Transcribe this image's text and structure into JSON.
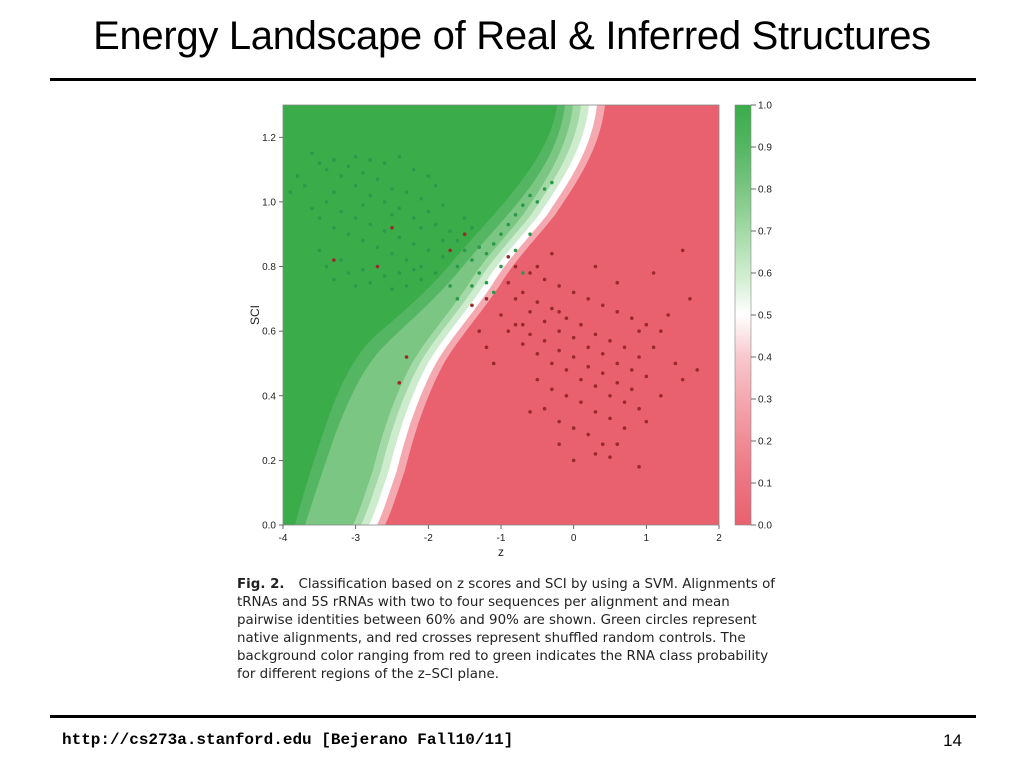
{
  "slide": {
    "title": "Energy Landscape of Real & Inferred Structures",
    "footer": "http://cs273a.stanford.edu  [Bejerano Fall10/11]",
    "page_number": "14"
  },
  "figure": {
    "caption_label": "Fig. 2.",
    "caption_text": "Classification based on z scores and SCI by using a SVM. Alignments of tRNAs and 5S rRNAs with two to four sequences per alignment and mean pairwise identities between 60% and 90% are shown. Green circles represent native alignments, and red crosses represent shuffled random controls. The background color ranging from red to green indicates the RNA class probability for different regions of the z–SCI plane."
  },
  "chart_data": {
    "type": "scatter",
    "xlabel": "z",
    "ylabel": "SCI",
    "xlim": [
      -4,
      2
    ],
    "ylim": [
      0,
      1.3
    ],
    "x_ticks": [
      "-4",
      "-3",
      "-2",
      "-1",
      "0",
      "1",
      "2"
    ],
    "y_ticks": [
      "0.0",
      "0.2",
      "0.4",
      "0.6",
      "0.8",
      "1.0",
      "1.2"
    ],
    "colorbar": {
      "range": [
        0,
        1
      ],
      "ticks": [
        "0.0",
        "0.1",
        "0.2",
        "0.3",
        "0.4",
        "0.5",
        "0.6",
        "0.7",
        "0.8",
        "0.9",
        "1.0"
      ],
      "low_color": "#e9616f",
      "mid_color": "#ffffff",
      "high_color": "#3aac4a"
    },
    "background": "RNA class probability (red to green)",
    "series": [
      {
        "color": "#2a9a4a",
        "points": [
          [
            -3.6,
            1.15
          ],
          [
            -3.5,
            1.12
          ],
          [
            -3.4,
            1.1
          ],
          [
            -3.3,
            1.13
          ],
          [
            -3.2,
            1.08
          ],
          [
            -3.1,
            1.11
          ],
          [
            -3.0,
            1.05
          ],
          [
            -2.9,
            1.09
          ],
          [
            -2.8,
            1.02
          ],
          [
            -2.7,
            1.07
          ],
          [
            -2.6,
            1.0
          ],
          [
            -2.5,
            1.04
          ],
          [
            -2.4,
            0.98
          ],
          [
            -2.3,
            1.03
          ],
          [
            -2.2,
            0.95
          ],
          [
            -2.1,
            1.01
          ],
          [
            -2.0,
            0.97
          ],
          [
            -1.9,
            0.93
          ],
          [
            -1.8,
            0.99
          ],
          [
            -1.7,
            0.91
          ],
          [
            -3.7,
            1.05
          ],
          [
            -3.6,
            0.98
          ],
          [
            -3.5,
            0.95
          ],
          [
            -3.4,
            1.0
          ],
          [
            -3.3,
            0.92
          ],
          [
            -3.2,
            0.97
          ],
          [
            -3.1,
            0.9
          ],
          [
            -3.0,
            0.95
          ],
          [
            -2.9,
            0.88
          ],
          [
            -2.8,
            0.93
          ],
          [
            -2.7,
            0.86
          ],
          [
            -2.6,
            0.91
          ],
          [
            -2.5,
            0.84
          ],
          [
            -2.4,
            0.89
          ],
          [
            -2.3,
            0.82
          ],
          [
            -2.2,
            0.87
          ],
          [
            -2.1,
            0.8
          ],
          [
            -2.0,
            0.85
          ],
          [
            -1.9,
            0.78
          ],
          [
            -1.8,
            0.83
          ],
          [
            -3.5,
            0.85
          ],
          [
            -3.4,
            0.8
          ],
          [
            -3.3,
            0.76
          ],
          [
            -3.2,
            0.82
          ],
          [
            -3.1,
            0.78
          ],
          [
            -3.0,
            0.74
          ],
          [
            -2.9,
            0.79
          ],
          [
            -2.8,
            0.75
          ],
          [
            -2.7,
            0.8
          ],
          [
            -2.6,
            0.77
          ],
          [
            -2.5,
            0.73
          ],
          [
            -2.4,
            0.78
          ],
          [
            -2.3,
            0.74
          ],
          [
            -2.2,
            0.79
          ],
          [
            -2.1,
            0.76
          ],
          [
            -1.6,
            0.88
          ],
          [
            -1.5,
            0.85
          ],
          [
            -1.4,
            0.82
          ],
          [
            -1.3,
            0.86
          ],
          [
            -1.2,
            0.84
          ],
          [
            -1.1,
            0.87
          ],
          [
            -1.0,
            0.9
          ],
          [
            -0.9,
            0.93
          ],
          [
            -0.8,
            0.96
          ],
          [
            -0.7,
            0.99
          ],
          [
            -0.6,
            1.02
          ],
          [
            -0.5,
            1.0
          ],
          [
            -0.4,
            1.04
          ],
          [
            -0.3,
            1.06
          ],
          [
            -1.5,
            0.95
          ],
          [
            -1.4,
            0.92
          ],
          [
            -1.3,
            0.78
          ],
          [
            -1.2,
            0.75
          ],
          [
            -1.1,
            0.72
          ],
          [
            -1.6,
            0.7
          ],
          [
            -1.7,
            0.74
          ],
          [
            -3.8,
            1.08
          ],
          [
            -3.9,
            1.03
          ],
          [
            -2.6,
            1.12
          ],
          [
            -2.4,
            1.14
          ],
          [
            -2.2,
            1.1
          ],
          [
            -2.0,
            1.08
          ],
          [
            -1.9,
            1.05
          ],
          [
            -3.0,
            1.14
          ],
          [
            -2.8,
            1.13
          ],
          [
            -3.3,
            1.03
          ],
          [
            -2.9,
            0.99
          ],
          [
            -2.5,
            0.96
          ],
          [
            -2.1,
            0.92
          ],
          [
            -1.8,
            0.88
          ],
          [
            -1.6,
            0.8
          ],
          [
            -1.4,
            0.74
          ],
          [
            -1.0,
            0.8
          ],
          [
            -0.8,
            0.85
          ],
          [
            -0.6,
            0.9
          ],
          [
            -0.7,
            0.78
          ]
        ]
      },
      {
        "color": "#9a2a2a",
        "points": [
          [
            -0.9,
            0.75
          ],
          [
            -0.8,
            0.7
          ],
          [
            -0.7,
            0.72
          ],
          [
            -0.6,
            0.66
          ],
          [
            -0.5,
            0.69
          ],
          [
            -0.4,
            0.63
          ],
          [
            -0.3,
            0.67
          ],
          [
            -0.2,
            0.6
          ],
          [
            -0.1,
            0.64
          ],
          [
            0.0,
            0.58
          ],
          [
            0.1,
            0.62
          ],
          [
            0.2,
            0.55
          ],
          [
            0.3,
            0.59
          ],
          [
            0.4,
            0.53
          ],
          [
            0.5,
            0.57
          ],
          [
            0.6,
            0.5
          ],
          [
            0.7,
            0.55
          ],
          [
            0.8,
            0.48
          ],
          [
            0.9,
            0.52
          ],
          [
            1.0,
            0.46
          ],
          [
            -1.0,
            0.65
          ],
          [
            -0.9,
            0.6
          ],
          [
            -0.8,
            0.62
          ],
          [
            -0.7,
            0.56
          ],
          [
            -0.6,
            0.59
          ],
          [
            -0.5,
            0.53
          ],
          [
            -0.4,
            0.57
          ],
          [
            -0.3,
            0.5
          ],
          [
            -0.2,
            0.54
          ],
          [
            -0.1,
            0.48
          ],
          [
            0.0,
            0.52
          ],
          [
            0.1,
            0.45
          ],
          [
            0.2,
            0.49
          ],
          [
            0.3,
            0.43
          ],
          [
            0.4,
            0.47
          ],
          [
            0.5,
            0.4
          ],
          [
            0.6,
            0.44
          ],
          [
            0.7,
            0.38
          ],
          [
            0.8,
            0.42
          ],
          [
            0.9,
            0.36
          ],
          [
            -0.8,
            0.8
          ],
          [
            -0.6,
            0.78
          ],
          [
            -0.4,
            0.76
          ],
          [
            -0.2,
            0.74
          ],
          [
            0.0,
            0.72
          ],
          [
            0.2,
            0.7
          ],
          [
            0.4,
            0.68
          ],
          [
            0.6,
            0.66
          ],
          [
            0.8,
            0.64
          ],
          [
            1.0,
            0.62
          ],
          [
            -0.5,
            0.45
          ],
          [
            -0.3,
            0.42
          ],
          [
            -0.1,
            0.4
          ],
          [
            0.1,
            0.38
          ],
          [
            0.3,
            0.35
          ],
          [
            0.5,
            0.33
          ],
          [
            0.7,
            0.3
          ],
          [
            -0.4,
            0.36
          ],
          [
            -0.2,
            0.32
          ],
          [
            0.0,
            0.3
          ],
          [
            0.2,
            0.28
          ],
          [
            0.4,
            0.25
          ],
          [
            -0.6,
            0.35
          ],
          [
            1.1,
            0.55
          ],
          [
            1.2,
            0.6
          ],
          [
            1.3,
            0.65
          ],
          [
            1.4,
            0.5
          ],
          [
            1.5,
            0.45
          ],
          [
            1.7,
            0.48
          ],
          [
            0.0,
            0.2
          ],
          [
            0.3,
            0.22
          ],
          [
            0.5,
            0.21
          ],
          [
            0.9,
            0.18
          ],
          [
            -0.2,
            0.25
          ],
          [
            -1.2,
            0.55
          ],
          [
            -1.1,
            0.5
          ],
          [
            -1.3,
            0.6
          ],
          [
            -2.3,
            0.52
          ],
          [
            -2.4,
            0.44
          ],
          [
            -2.5,
            0.92
          ],
          [
            -2.7,
            0.8
          ],
          [
            -3.3,
            0.82
          ],
          [
            -1.5,
            0.9
          ],
          [
            -1.7,
            0.85
          ],
          [
            -1.4,
            0.68
          ],
          [
            -1.2,
            0.7
          ],
          [
            -0.9,
            0.83
          ],
          [
            -0.5,
            0.8
          ],
          [
            -0.3,
            0.84
          ],
          [
            0.3,
            0.8
          ],
          [
            0.6,
            0.75
          ],
          [
            1.1,
            0.78
          ],
          [
            1.6,
            0.7
          ],
          [
            1.5,
            0.85
          ],
          [
            -0.7,
            0.62
          ],
          [
            -0.2,
            0.66
          ],
          [
            0.9,
            0.6
          ],
          [
            1.2,
            0.4
          ],
          [
            1.0,
            0.32
          ],
          [
            0.6,
            0.25
          ]
        ]
      }
    ]
  }
}
